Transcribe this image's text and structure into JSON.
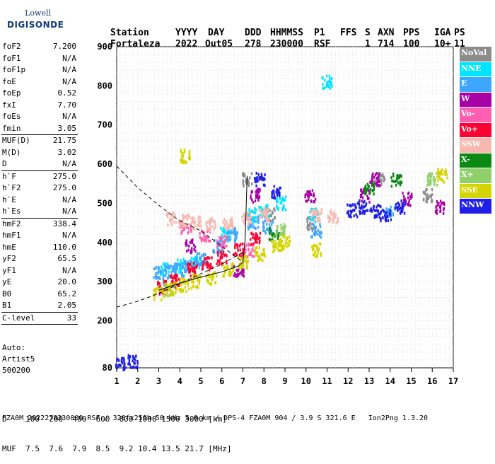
{
  "logo": {
    "top": "Lowell",
    "bottom": "DIGISONDE"
  },
  "header": {
    "labels": [
      "Station",
      "YYYY",
      "DAY",
      "DDD",
      "HHMMSS",
      "P1",
      "FFS",
      "S",
      "AXN",
      "PPS",
      "IGA",
      "PS"
    ],
    "values": [
      "Fortaleza",
      "2022",
      "Out05",
      "278",
      "230000",
      "RSF",
      "",
      "1",
      "714",
      "100",
      "10+",
      "11"
    ]
  },
  "params": [
    {
      "name": "foF2",
      "value": "7.200"
    },
    {
      "name": "foF1",
      "value": "N/A"
    },
    {
      "name": "foF1p",
      "value": "N/A"
    },
    {
      "name": "foE",
      "value": "N/A"
    },
    {
      "name": "foEp",
      "value": "0.52"
    },
    {
      "name": "fxI",
      "value": "7.70"
    },
    {
      "name": "foEs",
      "value": "N/A"
    },
    {
      "name": "fmin",
      "value": "3.05"
    },
    {
      "sep": true
    },
    {
      "name": "MUF(D)",
      "value": "21.75"
    },
    {
      "name": "M(D)",
      "value": "3.02"
    },
    {
      "name": "D",
      "value": "N/A"
    },
    {
      "sep": true
    },
    {
      "name": "h`F",
      "value": "275.0"
    },
    {
      "name": "h`F2",
      "value": "275.0"
    },
    {
      "name": "h`E",
      "value": "N/A"
    },
    {
      "name": "h`Es",
      "value": "N/A"
    },
    {
      "sep": true
    },
    {
      "name": "hmF2",
      "value": "338.4"
    },
    {
      "name": "hmF1",
      "value": "N/A"
    },
    {
      "name": "hmE",
      "value": "110.0"
    },
    {
      "name": "yF2",
      "value": "65.5"
    },
    {
      "name": "yF1",
      "value": "N/A"
    },
    {
      "name": "yE",
      "value": "20.0"
    },
    {
      "name": "B0",
      "value": "65.2"
    },
    {
      "name": "B1",
      "value": "2.05"
    },
    {
      "sep": true
    },
    {
      "name": "C-level",
      "value": "33"
    },
    {
      "sep": true
    }
  ],
  "auto": [
    "Auto:",
    "Artist5",
    "500200"
  ],
  "legend": [
    {
      "label": "NoVal",
      "color": "#8c8c8c"
    },
    {
      "label": "NNE",
      "color": "#00e5ff"
    },
    {
      "label": "E",
      "color": "#3ea6ff"
    },
    {
      "label": "W",
      "color": "#a600a6"
    },
    {
      "label": "Vo-",
      "color": "#ff5fb0"
    },
    {
      "label": "Vo+",
      "color": "#ff0032"
    },
    {
      "label": "SSW",
      "color": "#f7b8b0"
    },
    {
      "label": "X-",
      "color": "#0a8a12"
    },
    {
      "label": "X+",
      "color": "#8fd06a"
    },
    {
      "label": "SSE",
      "color": "#d4d400"
    },
    {
      "label": "NNW",
      "color": "#1e1ee6"
    }
  ],
  "bottom": {
    "d_row": "D    100  200  400  600  800 1000 1500 3000 [km]",
    "muf_row": "MUF  7.5  7.6  7.9  8.5  9.2 10.4 13.5 21.7 [MHz]"
  },
  "footer": "FZA0M_2022278230000.RSF / 320fx256h 50 kHz 5.0 km / DPS-4 FZA0M 904 / 3.9 S 321.6 E   Ion2Png 1.3.20",
  "chart_data": {
    "type": "scatter",
    "title": "",
    "xlabel": "",
    "ylabel": "",
    "xlim": [
      1,
      17
    ],
    "ylim": [
      80,
      900
    ],
    "x_ticks": [
      1,
      2,
      3,
      4,
      5,
      6,
      7,
      8,
      9,
      10,
      11,
      12,
      13,
      14,
      15,
      16,
      17
    ],
    "y_ticks": [
      80,
      200,
      300,
      400,
      500,
      600,
      700,
      800,
      900
    ],
    "grid": true,
    "clusters": [
      {
        "name": "NoVal",
        "color": "#8c8c8c",
        "points": [
          [
            7.2,
            560
          ],
          [
            8.3,
            470
          ],
          [
            10.3,
            450
          ],
          [
            13.5,
            560
          ],
          [
            15.8,
            520
          ]
        ]
      },
      {
        "name": "NNE",
        "color": "#00e5ff",
        "points": [
          [
            3.3,
            330
          ],
          [
            4.0,
            340
          ],
          [
            4.8,
            350
          ],
          [
            6.2,
            420
          ],
          [
            7.4,
            470
          ],
          [
            8.0,
            480
          ],
          [
            8.8,
            500
          ],
          [
            10.4,
            470
          ],
          [
            11.0,
            810
          ]
        ]
      },
      {
        "name": "E",
        "color": "#3ea6ff",
        "points": [
          [
            3.0,
            320
          ],
          [
            3.5,
            325
          ],
          [
            4.0,
            330
          ],
          [
            4.5,
            340
          ],
          [
            5.0,
            360
          ],
          [
            5.8,
            390
          ],
          [
            6.5,
            420
          ],
          [
            7.5,
            450
          ],
          [
            8.2,
            440
          ],
          [
            10.5,
            430
          ],
          [
            14.0,
            480
          ]
        ]
      },
      {
        "name": "W",
        "color": "#a600a6",
        "points": [
          [
            4.5,
            390
          ],
          [
            6.8,
            330
          ],
          [
            7.6,
            520
          ],
          [
            10.2,
            520
          ],
          [
            12.8,
            520
          ],
          [
            13.3,
            560
          ],
          [
            14.8,
            510
          ],
          [
            16.4,
            490
          ]
        ]
      },
      {
        "name": "Vo-",
        "color": "#ff5fb0",
        "points": [
          [
            4.3,
            440
          ],
          [
            5.2,
            420
          ],
          [
            6.0,
            400
          ],
          [
            7.3,
            380
          ]
        ]
      },
      {
        "name": "Vo+",
        "color": "#ff0032",
        "points": [
          [
            3.2,
            285
          ],
          [
            3.8,
            300
          ],
          [
            4.6,
            330
          ],
          [
            5.3,
            345
          ],
          [
            6.0,
            360
          ],
          [
            6.8,
            380
          ],
          [
            7.6,
            410
          ]
        ]
      },
      {
        "name": "SSW",
        "color": "#f7b8b0",
        "points": [
          [
            3.6,
            460
          ],
          [
            4.2,
            455
          ],
          [
            4.8,
            450
          ],
          [
            5.5,
            445
          ],
          [
            6.3,
            450
          ],
          [
            7.2,
            460
          ],
          [
            8.0,
            470
          ],
          [
            10.5,
            470
          ],
          [
            11.3,
            465
          ]
        ]
      },
      {
        "name": "X-",
        "color": "#0a8a12",
        "points": [
          [
            8.5,
            420
          ],
          [
            13.0,
            540
          ],
          [
            14.3,
            560
          ]
        ]
      },
      {
        "name": "X+",
        "color": "#8fd06a",
        "points": [
          [
            3.5,
            280
          ],
          [
            8.8,
            430
          ],
          [
            16.0,
            560
          ]
        ]
      },
      {
        "name": "SSE",
        "color": "#d4d400",
        "points": [
          [
            3.0,
            270
          ],
          [
            3.6,
            280
          ],
          [
            4.2,
            290
          ],
          [
            4.8,
            300
          ],
          [
            5.5,
            310
          ],
          [
            6.3,
            330
          ],
          [
            7.0,
            350
          ],
          [
            7.8,
            370
          ],
          [
            8.6,
            390
          ],
          [
            9.0,
            400
          ],
          [
            10.5,
            380
          ],
          [
            4.3,
            620
          ],
          [
            16.5,
            570
          ]
        ]
      },
      {
        "name": "NNW",
        "color": "#1e1ee6",
        "points": [
          [
            1.2,
            90
          ],
          [
            1.8,
            95
          ],
          [
            7.8,
            560
          ],
          [
            8.6,
            530
          ],
          [
            12.2,
            480
          ],
          [
            12.7,
            490
          ],
          [
            13.3,
            480
          ],
          [
            13.8,
            470
          ],
          [
            14.5,
            490
          ]
        ]
      }
    ],
    "curves": [
      {
        "style": "dashed",
        "points": [
          [
            1,
            595
          ],
          [
            2,
            540
          ],
          [
            3,
            495
          ],
          [
            4,
            455
          ],
          [
            5,
            430
          ],
          [
            6,
            390
          ],
          [
            7,
            350
          ]
        ]
      },
      {
        "style": "dashed",
        "points": [
          [
            1,
            235
          ],
          [
            2,
            250
          ],
          [
            3,
            270
          ],
          [
            4,
            295
          ],
          [
            5,
            320
          ],
          [
            6,
            345
          ],
          [
            7,
            375
          ]
        ]
      },
      {
        "style": "solid",
        "points": [
          [
            3.0,
            278
          ],
          [
            4.0,
            296
          ],
          [
            5.0,
            312
          ],
          [
            6.0,
            325
          ],
          [
            6.8,
            340
          ],
          [
            7.0,
            350
          ],
          [
            7.1,
            400
          ],
          [
            7.2,
            570
          ]
        ]
      }
    ]
  }
}
